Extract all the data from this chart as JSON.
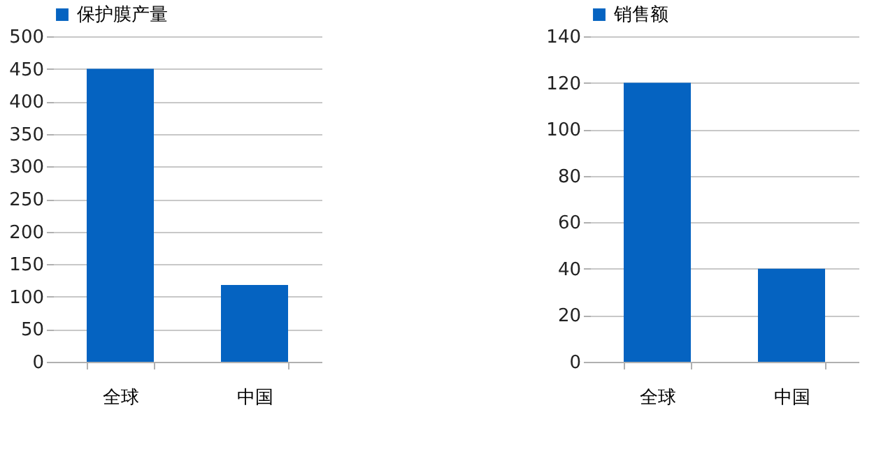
{
  "chart_data": [
    {
      "type": "bar",
      "categories": [
        "全球",
        "中国"
      ],
      "series": [
        {
          "name": "保护膜产量",
          "color": "#0563c1",
          "values": [
            450,
            118
          ]
        }
      ],
      "ylim": [
        0,
        500
      ],
      "yticks": [
        0,
        50,
        100,
        150,
        200,
        250,
        300,
        350,
        400,
        450,
        500
      ],
      "grid": "y",
      "legend": "top"
    },
    {
      "type": "bar",
      "categories": [
        "全球",
        "中国"
      ],
      "series": [
        {
          "name": "销售额",
          "color": "#0563c1",
          "values": [
            120,
            40
          ]
        }
      ],
      "ylim": [
        0,
        140
      ],
      "yticks": [
        0,
        20,
        40,
        60,
        80,
        100,
        120,
        140
      ],
      "grid": "y",
      "legend": "top"
    }
  ]
}
